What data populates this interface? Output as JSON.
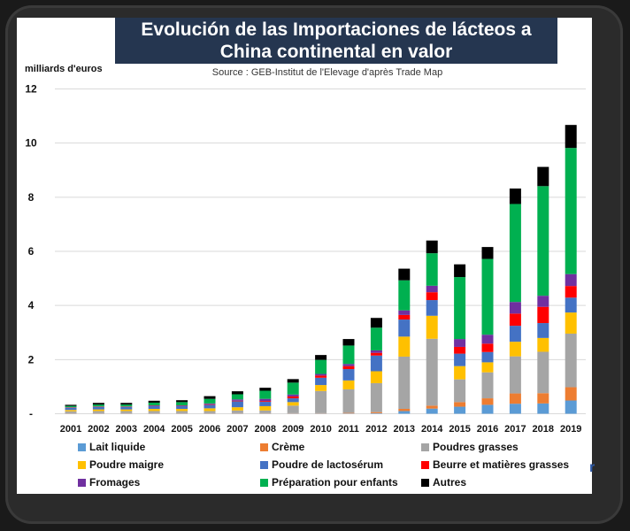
{
  "title_lines": [
    "Evolución de las Importaciones de lácteos a",
    "China continental en valor"
  ],
  "source": "Source :  GEB-Institut de l'Elevage d'après Trade Map",
  "stray_glyph": "r",
  "chart_data": {
    "type": "bar",
    "stacked": true,
    "title": "Evolución de las Importaciones de lácteos a China continental en valor",
    "subtitle": "Source :  GEB-Institut de l'Elevage d'après Trade Map",
    "xlabel": "",
    "ylabel": "milliards d'euros",
    "ylim": [
      0,
      12
    ],
    "yticks": [
      0,
      2,
      4,
      6,
      8,
      10,
      12
    ],
    "ytick_labels": [
      "-",
      "2",
      "4",
      "6",
      "8",
      "10",
      "12"
    ],
    "grid": true,
    "legend_position": "bottom",
    "categories": [
      "2001",
      "2002",
      "2003",
      "2004",
      "2005",
      "2006",
      "2007",
      "2008",
      "2009",
      "2010",
      "2011",
      "2012",
      "2013",
      "2014",
      "2015",
      "2016",
      "2017",
      "2018",
      "2019"
    ],
    "series": [
      {
        "name": "Lait liquide",
        "color": "#5b9bd5",
        "values": [
          0.01,
          0.01,
          0.01,
          0.01,
          0.01,
          0.01,
          0.01,
          0.01,
          0.01,
          0.01,
          0.01,
          0.02,
          0.1,
          0.19,
          0.26,
          0.33,
          0.37,
          0.38,
          0.49
        ]
      },
      {
        "name": "Crème",
        "color": "#ed7d31",
        "values": [
          0.01,
          0.01,
          0.01,
          0.01,
          0.01,
          0.01,
          0.01,
          0.01,
          0.01,
          0.01,
          0.02,
          0.04,
          0.08,
          0.11,
          0.17,
          0.24,
          0.38,
          0.38,
          0.49
        ]
      },
      {
        "name": "Poudres grasses",
        "color": "#a5a5a5",
        "values": [
          0.07,
          0.08,
          0.08,
          0.08,
          0.08,
          0.08,
          0.1,
          0.1,
          0.28,
          0.82,
          0.87,
          1.07,
          1.93,
          2.47,
          0.84,
          0.96,
          1.37,
          1.53,
          1.98
        ]
      },
      {
        "name": "Poudre maigre",
        "color": "#ffc000",
        "values": [
          0.05,
          0.06,
          0.06,
          0.08,
          0.08,
          0.1,
          0.12,
          0.16,
          0.13,
          0.22,
          0.33,
          0.44,
          0.74,
          0.85,
          0.49,
          0.37,
          0.54,
          0.51,
          0.78
        ]
      },
      {
        "name": "Poudre de lactosérum",
        "color": "#4472c4",
        "values": [
          0.08,
          0.09,
          0.09,
          0.1,
          0.1,
          0.13,
          0.22,
          0.16,
          0.14,
          0.27,
          0.42,
          0.58,
          0.63,
          0.58,
          0.46,
          0.38,
          0.59,
          0.55,
          0.55
        ]
      },
      {
        "name": "Beurre et matières grasses",
        "color": "#ff0000",
        "values": [
          0.01,
          0.01,
          0.01,
          0.01,
          0.01,
          0.02,
          0.02,
          0.03,
          0.07,
          0.08,
          0.11,
          0.1,
          0.17,
          0.29,
          0.25,
          0.31,
          0.45,
          0.6,
          0.43
        ]
      },
      {
        "name": "Fromages",
        "color": "#7030a0",
        "values": [
          0.01,
          0.01,
          0.01,
          0.02,
          0.02,
          0.03,
          0.05,
          0.08,
          0.07,
          0.06,
          0.08,
          0.09,
          0.17,
          0.24,
          0.29,
          0.33,
          0.43,
          0.41,
          0.44
        ]
      },
      {
        "name": "Préparation pour enfants",
        "color": "#00b050",
        "values": [
          0.05,
          0.07,
          0.07,
          0.1,
          0.12,
          0.17,
          0.19,
          0.3,
          0.44,
          0.52,
          0.68,
          0.84,
          1.11,
          1.2,
          2.29,
          2.8,
          3.62,
          4.05,
          4.66
        ]
      },
      {
        "name": "Autres",
        "color": "#000000",
        "values": [
          0.04,
          0.06,
          0.06,
          0.07,
          0.07,
          0.1,
          0.11,
          0.11,
          0.13,
          0.18,
          0.24,
          0.36,
          0.43,
          0.47,
          0.47,
          0.44,
          0.57,
          0.71,
          0.85
        ]
      }
    ],
    "totals": [
      0.33,
      0.4,
      0.4,
      0.48,
      0.5,
      0.65,
      0.83,
      0.96,
      1.28,
      2.17,
      2.76,
      3.54,
      5.36,
      6.4,
      5.52,
      6.16,
      8.32,
      9.12,
      10.67
    ]
  },
  "legend_layout": [
    [
      "Lait liquide",
      "Crème",
      "Poudres grasses"
    ],
    [
      "Poudre maigre",
      "Poudre de lactosérum",
      "Beurre et matières grasses"
    ],
    [
      "Fromages",
      "Préparation pour enfants",
      "Autres"
    ]
  ]
}
